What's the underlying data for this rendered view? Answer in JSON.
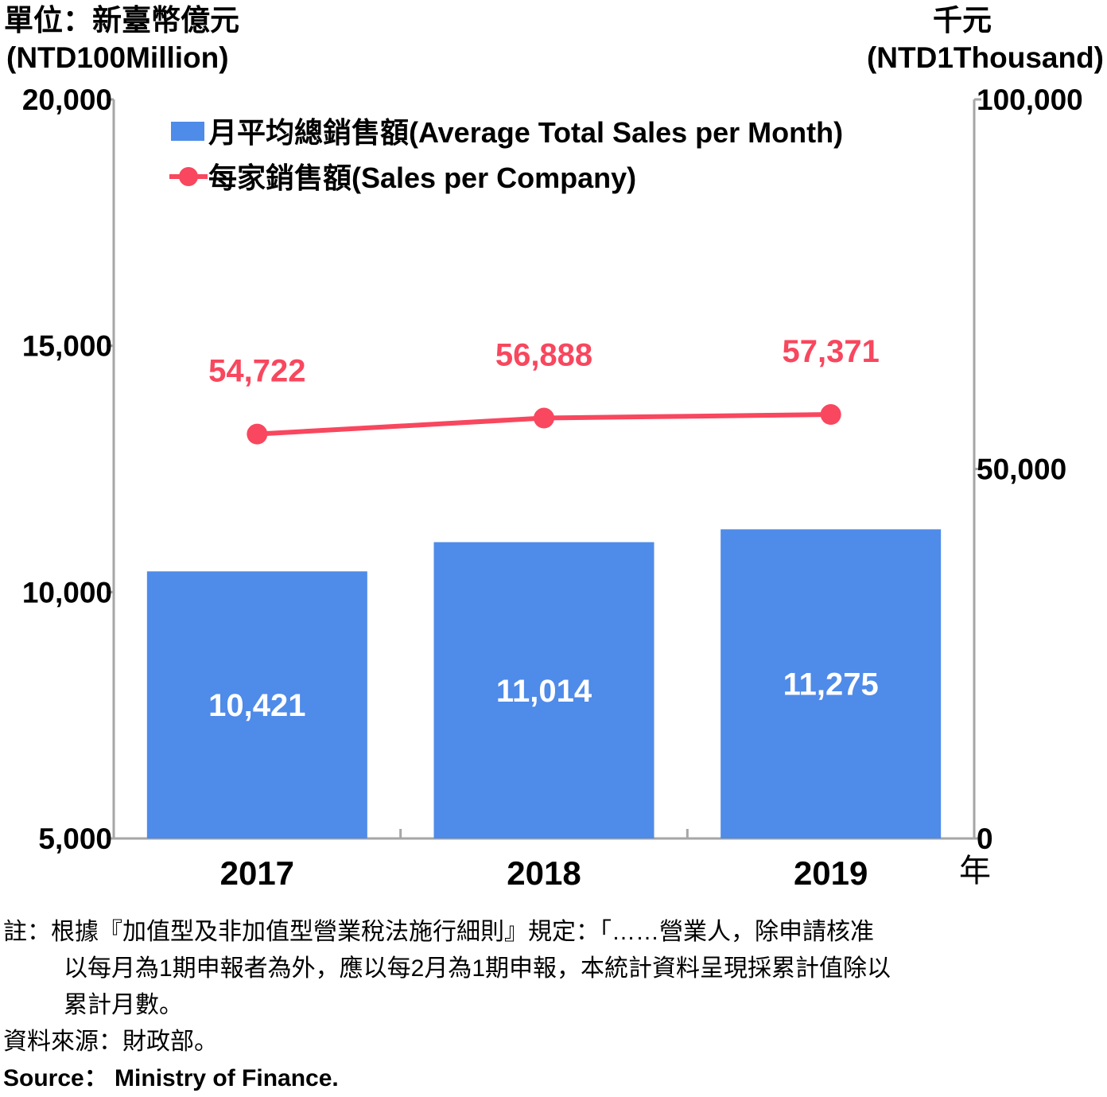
{
  "chart_data": {
    "type": "bar+line",
    "categories": [
      "2017",
      "2018",
      "2019"
    ],
    "xunit": "年",
    "left_axis": {
      "unit_zh": "單位：新臺幣億元",
      "unit_en": "(NTD100Million)",
      "ylim": [
        5000,
        20000
      ],
      "ticks": [
        "5,000",
        "10,000",
        "15,000",
        "20,000"
      ],
      "tick_values": [
        5000,
        10000,
        15000,
        20000
      ]
    },
    "right_axis": {
      "unit_zh": "千元",
      "unit_en": "(NTD1Thousand)",
      "ylim": [
        0,
        100000
      ],
      "ticks": [
        "0",
        "50,000",
        "100,000"
      ],
      "tick_values": [
        0,
        50000,
        100000
      ]
    },
    "series": [
      {
        "name": "月平均總銷售額(Average Total Sales per Month)",
        "kind": "bar",
        "axis": "left",
        "color": "#4F8BE8",
        "values": [
          10421,
          11014,
          11275
        ],
        "labels": [
          "10,421",
          "11,014",
          "11,275"
        ]
      },
      {
        "name": "每家銷售額(Sales per Company)",
        "kind": "line",
        "axis": "right",
        "color": "#F8475E",
        "values": [
          54722,
          56888,
          57371
        ],
        "labels": [
          "54,722",
          "56,888",
          "57,371"
        ]
      }
    ],
    "legend_position": "top-left",
    "grid": false
  },
  "notes": {
    "line1": "註：根據『加值型及非加值型營業稅法施行細則』規定：「……營業人，除申請核准",
    "line2": "以每月為1期申報者為外，應以每2月為1期申報，本統計資料呈現採累計值除以",
    "line3": "累計月數。",
    "source_zh": "資料來源：財政部。",
    "source_en": "Source： Ministry of Finance."
  }
}
